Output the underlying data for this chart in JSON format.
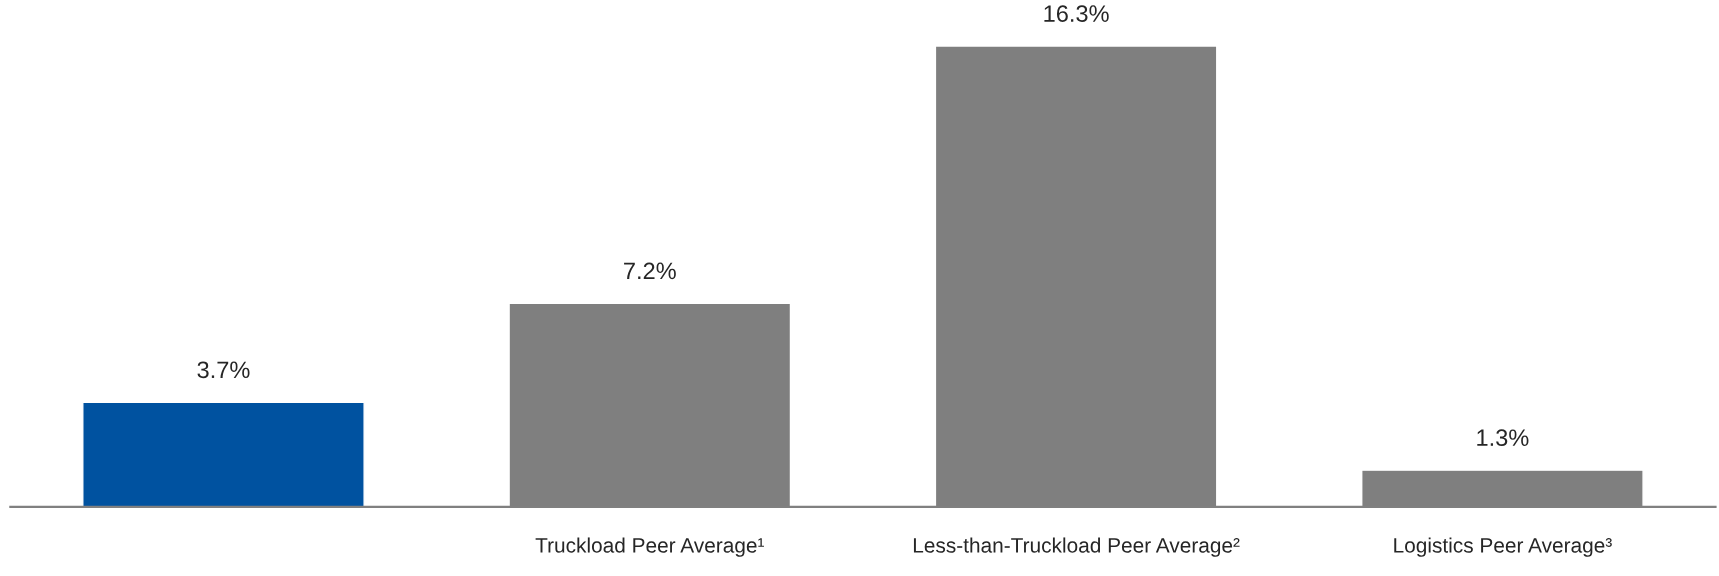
{
  "chart_data": {
    "type": "bar",
    "categories": [
      null,
      "Truckload Peer Average¹",
      "Less-than-Truckload Peer Average²",
      "Logistics Peer Average³"
    ],
    "values": [
      3.7,
      7.2,
      16.3,
      1.3
    ],
    "colors": [
      "#0052a0",
      "#7f7f7f",
      "#7f7f7f",
      "#7f7f7f"
    ],
    "value_labels": [
      "3.7%",
      "7.2%",
      "16.3%",
      "1.3%"
    ],
    "grid": false,
    "legend": false
  }
}
